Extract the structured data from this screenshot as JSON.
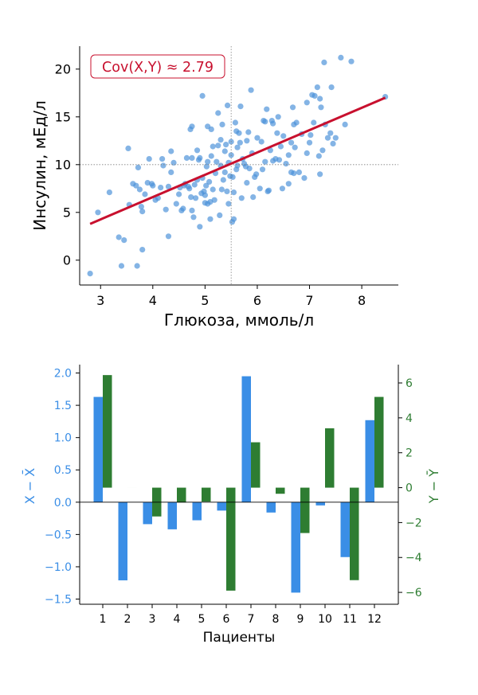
{
  "colors": {
    "scatter": "#4a90d9",
    "trend": "#c8102e",
    "bar_dx": "#3a8ee6",
    "bar_dy": "#2e7d32",
    "axis": "#000000",
    "refline": "#808080"
  },
  "chart_data": [
    {
      "type": "scatter",
      "title": "",
      "xlabel": "Глюкоза, ммоль/л",
      "ylabel": "Инсулин, мЕд/л",
      "xlim": [
        2.6,
        8.7
      ],
      "ylim": [
        -2.6,
        22.4
      ],
      "xticks": [
        "3",
        "4",
        "5",
        "6",
        "7",
        "8"
      ],
      "yticks": [
        "0",
        "5",
        "10",
        "15",
        "20"
      ],
      "annotation": "Cov(X,Y) ≈ 2.79",
      "mean_x": 5.5,
      "mean_y": 10.0,
      "trend": {
        "x": [
          2.8,
          8.45
        ],
        "y": [
          3.8,
          17.0
        ]
      },
      "points": [
        [
          2.8,
          -1.4
        ],
        [
          2.95,
          5.0
        ],
        [
          3.17,
          7.1
        ],
        [
          3.35,
          2.4
        ],
        [
          3.4,
          -0.6
        ],
        [
          3.45,
          2.1
        ],
        [
          3.53,
          11.7
        ],
        [
          3.55,
          5.8
        ],
        [
          3.62,
          8.0
        ],
        [
          3.68,
          7.8
        ],
        [
          3.7,
          -0.6
        ],
        [
          3.72,
          9.7
        ],
        [
          3.75,
          7.4
        ],
        [
          3.78,
          5.6
        ],
        [
          3.8,
          1.1
        ],
        [
          3.8,
          5.1
        ],
        [
          3.85,
          6.9
        ],
        [
          3.9,
          8.1
        ],
        [
          3.93,
          10.6
        ],
        [
          3.98,
          8.0
        ],
        [
          4.0,
          7.8
        ],
        [
          4.05,
          6.3
        ],
        [
          4.1,
          6.5
        ],
        [
          4.15,
          7.6
        ],
        [
          4.18,
          10.6
        ],
        [
          4.2,
          9.9
        ],
        [
          4.25,
          5.3
        ],
        [
          4.3,
          2.5
        ],
        [
          4.3,
          7.7
        ],
        [
          4.35,
          11.4
        ],
        [
          4.35,
          9.2
        ],
        [
          4.4,
          10.2
        ],
        [
          4.45,
          5.9
        ],
        [
          4.5,
          6.9
        ],
        [
          4.52,
          7.6
        ],
        [
          4.55,
          5.2
        ],
        [
          4.58,
          5.4
        ],
        [
          4.6,
          7.8
        ],
        [
          4.62,
          8.0
        ],
        [
          4.65,
          10.7
        ],
        [
          4.68,
          7.7
        ],
        [
          4.7,
          7.5
        ],
        [
          4.72,
          13.7
        ],
        [
          4.73,
          6.6
        ],
        [
          4.75,
          14.0
        ],
        [
          4.75,
          10.7
        ],
        [
          4.75,
          5.2
        ],
        [
          4.78,
          4.5
        ],
        [
          4.8,
          7.9
        ],
        [
          4.82,
          6.5
        ],
        [
          4.85,
          8.4
        ],
        [
          4.85,
          11.5
        ],
        [
          4.88,
          10.5
        ],
        [
          4.9,
          10.7
        ],
        [
          4.9,
          3.5
        ],
        [
          4.93,
          7.0
        ],
        [
          4.95,
          17.2
        ],
        [
          4.95,
          8.6
        ],
        [
          4.98,
          7.2
        ],
        [
          5.0,
          6.8
        ],
        [
          5.0,
          6.0
        ],
        [
          5.02,
          7.8
        ],
        [
          5.03,
          9.8
        ],
        [
          5.05,
          10.3
        ],
        [
          5.05,
          14.0
        ],
        [
          5.05,
          5.9
        ],
        [
          5.08,
          8.2
        ],
        [
          5.1,
          6.1
        ],
        [
          5.1,
          4.3
        ],
        [
          5.12,
          10.9
        ],
        [
          5.12,
          13.7
        ],
        [
          5.15,
          11.9
        ],
        [
          5.15,
          7.4
        ],
        [
          5.18,
          6.3
        ],
        [
          5.2,
          9.1
        ],
        [
          5.22,
          10.3
        ],
        [
          5.25,
          12.0
        ],
        [
          5.25,
          15.4
        ],
        [
          5.28,
          4.7
        ],
        [
          5.3,
          9.9
        ],
        [
          5.3,
          12.6
        ],
        [
          5.32,
          7.4
        ],
        [
          5.33,
          14.2
        ],
        [
          5.35,
          8.4
        ],
        [
          5.38,
          11.4
        ],
        [
          5.38,
          9.2
        ],
        [
          5.4,
          12.1
        ],
        [
          5.42,
          7.2
        ],
        [
          5.43,
          16.2
        ],
        [
          5.45,
          10.2
        ],
        [
          5.45,
          5.9
        ],
        [
          5.48,
          8.8
        ],
        [
          5.5,
          11.0
        ],
        [
          5.5,
          12.4
        ],
        [
          5.52,
          4.0
        ],
        [
          5.53,
          8.7
        ],
        [
          5.55,
          4.3
        ],
        [
          5.55,
          7.1
        ],
        [
          5.58,
          14.4
        ],
        [
          5.6,
          9.5
        ],
        [
          5.6,
          13.5
        ],
        [
          5.62,
          11.8
        ],
        [
          5.62,
          9.9
        ],
        [
          5.65,
          13.3
        ],
        [
          5.67,
          12.3
        ],
        [
          5.68,
          16.1
        ],
        [
          5.7,
          6.5
        ],
        [
          5.72,
          10.6
        ],
        [
          5.75,
          10.1
        ],
        [
          5.78,
          9.8
        ],
        [
          5.8,
          12.5
        ],
        [
          5.8,
          8.1
        ],
        [
          5.83,
          13.4
        ],
        [
          5.85,
          9.6
        ],
        [
          5.88,
          17.8
        ],
        [
          5.9,
          11.2
        ],
        [
          5.92,
          6.6
        ],
        [
          5.95,
          8.7
        ],
        [
          5.98,
          9.0
        ],
        [
          6.0,
          12.8
        ],
        [
          6.05,
          7.5
        ],
        [
          6.08,
          12.4
        ],
        [
          6.1,
          9.5
        ],
        [
          6.12,
          14.6
        ],
        [
          6.15,
          14.5
        ],
        [
          6.15,
          10.3
        ],
        [
          6.18,
          15.8
        ],
        [
          6.2,
          7.2
        ],
        [
          6.22,
          7.3
        ],
        [
          6.25,
          11.5
        ],
        [
          6.28,
          14.6
        ],
        [
          6.3,
          10.4
        ],
        [
          6.3,
          14.3
        ],
        [
          6.35,
          10.6
        ],
        [
          6.38,
          13.3
        ],
        [
          6.4,
          15.0
        ],
        [
          6.42,
          10.5
        ],
        [
          6.45,
          11.9
        ],
        [
          6.48,
          7.5
        ],
        [
          6.5,
          13.0
        ],
        [
          6.55,
          10.1
        ],
        [
          6.6,
          8.0
        ],
        [
          6.6,
          11.0
        ],
        [
          6.65,
          9.2
        ],
        [
          6.65,
          12.3
        ],
        [
          6.68,
          16.0
        ],
        [
          6.7,
          14.2
        ],
        [
          6.7,
          9.1
        ],
        [
          6.72,
          11.8
        ],
        [
          6.75,
          14.4
        ],
        [
          6.8,
          9.2
        ],
        [
          6.85,
          13.2
        ],
        [
          6.9,
          8.6
        ],
        [
          6.95,
          16.5
        ],
        [
          6.95,
          11.2
        ],
        [
          7.0,
          12.3
        ],
        [
          7.02,
          13.1
        ],
        [
          7.05,
          17.3
        ],
        [
          7.08,
          14.4
        ],
        [
          7.1,
          17.2
        ],
        [
          7.15,
          18.1
        ],
        [
          7.18,
          10.9
        ],
        [
          7.2,
          16.9
        ],
        [
          7.2,
          9.0
        ],
        [
          7.22,
          16.0
        ],
        [
          7.25,
          11.5
        ],
        [
          7.28,
          20.7
        ],
        [
          7.3,
          14.2
        ],
        [
          7.35,
          12.8
        ],
        [
          7.4,
          13.3
        ],
        [
          7.42,
          18.1
        ],
        [
          7.45,
          12.2
        ],
        [
          7.5,
          12.8
        ],
        [
          7.6,
          21.2
        ],
        [
          7.68,
          14.2
        ],
        [
          7.8,
          20.8
        ],
        [
          8.45,
          17.1
        ]
      ]
    },
    {
      "type": "bar",
      "title": "",
      "xlabel": "Пациенты",
      "ylabel_left": "X − X̄",
      "ylabel_right": "Y − Ȳ",
      "categories": [
        "1",
        "2",
        "3",
        "4",
        "5",
        "6",
        "7",
        "8",
        "9",
        "10",
        "11",
        "12"
      ],
      "ylim_left": [
        -1.58,
        2.13
      ],
      "ylim_right": [
        -6.68,
        7.05
      ],
      "yticks_left": [
        "2.0",
        "1.5",
        "1.0",
        "0.5",
        "0.0",
        "−0.5",
        "−1.0",
        "−1.5"
      ],
      "yticks_right": [
        "6",
        "4",
        "2",
        "0",
        "−2",
        "−4",
        "−6"
      ],
      "series": [
        {
          "name": "X − X̄",
          "axis": "left",
          "values": [
            1.63,
            -1.21,
            -0.34,
            -0.42,
            -0.28,
            -0.13,
            1.95,
            -0.16,
            -1.4,
            -0.05,
            -0.85,
            1.27
          ]
        },
        {
          "name": "Y − Ȳ",
          "axis": "right",
          "values": [
            6.45,
            0.0,
            -1.65,
            -0.85,
            -0.8,
            -5.9,
            2.6,
            -0.35,
            -2.6,
            3.4,
            -5.3,
            5.2
          ]
        }
      ]
    }
  ]
}
